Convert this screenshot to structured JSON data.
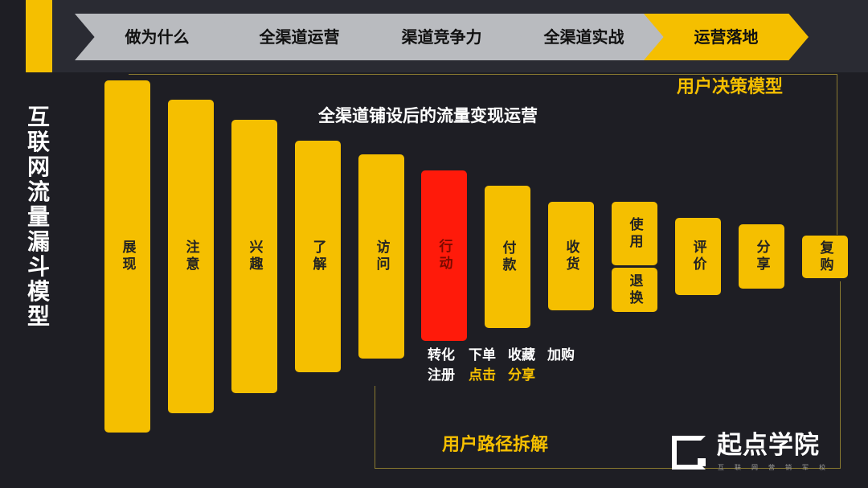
{
  "steps": [
    "做为什么",
    "全渠道运营",
    "渠道竞争力",
    "全渠道实战",
    "运营落地"
  ],
  "active_step": 4,
  "side_title": "互联网流量漏斗模型",
  "subtitle": "全渠道铺设后的流量变现运营",
  "decision_model": "用户决策模型",
  "path_title": "用户路径拆解",
  "bars": [
    "展现",
    "注意",
    "兴趣",
    "了解",
    "访问",
    "行动",
    "付款",
    "收货",
    "使用",
    "退换",
    "评价",
    "分享",
    "复购"
  ],
  "actions": {
    "row1": [
      "转化",
      "下单",
      "收藏",
      "加购"
    ],
    "row2": [
      "注册",
      "点击",
      "分享"
    ]
  },
  "logo": {
    "name": "起点学院",
    "tagline": "互联网营销军校"
  },
  "colors": {
    "accent": "#f5bf00",
    "highlight": "#ff1a0a"
  }
}
